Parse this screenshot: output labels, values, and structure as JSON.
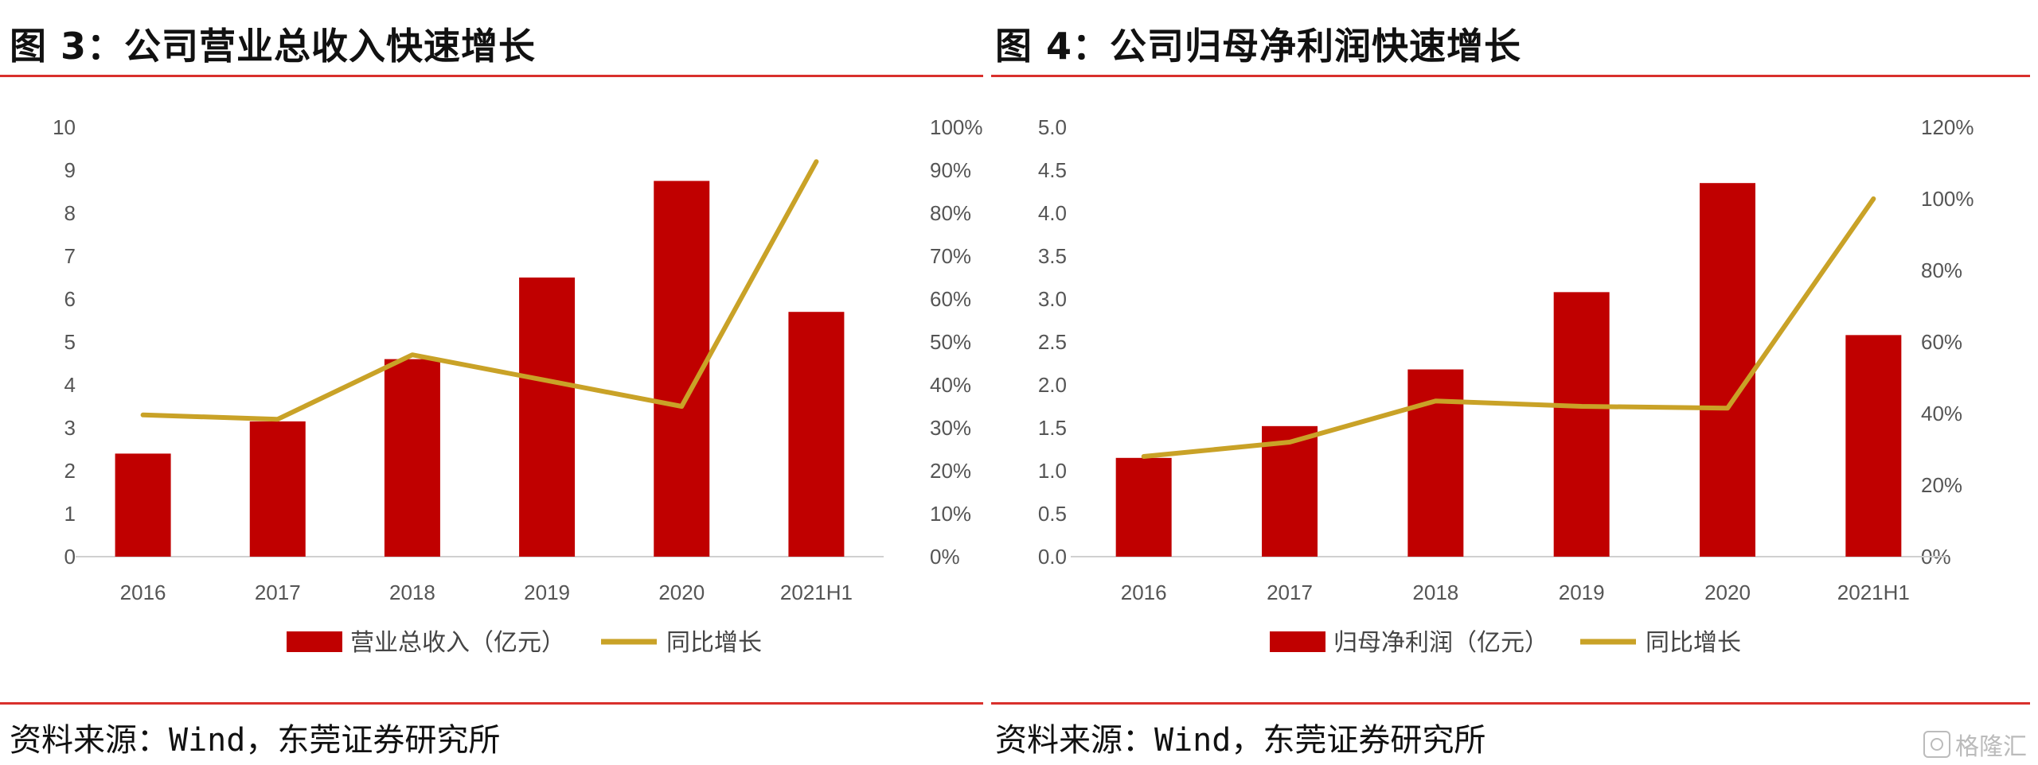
{
  "left": {
    "title": "图 3：公司营业总收入快速增长",
    "source": "资料来源：Wind，东莞证券研究所",
    "legend": {
      "bar": "营业总收入（亿元）",
      "line": "同比增长"
    },
    "y_ticks": [
      "0",
      "1",
      "2",
      "3",
      "4",
      "5",
      "6",
      "7",
      "8",
      "9",
      "10"
    ],
    "y2_ticks": [
      "0%",
      "10%",
      "20%",
      "30%",
      "40%",
      "50%",
      "60%",
      "70%",
      "80%",
      "90%",
      "100%"
    ]
  },
  "right": {
    "title": "图 4：公司归母净利润快速增长",
    "source": "资料来源：Wind，东莞证券研究所",
    "legend": {
      "bar": "归母净利润（亿元）",
      "line": "同比增长"
    },
    "y_ticks": [
      "0.0",
      "0.5",
      "1.0",
      "1.5",
      "2.0",
      "2.5",
      "3.0",
      "3.5",
      "4.0",
      "4.5",
      "5.0"
    ],
    "y2_ticks": [
      "0%",
      "20%",
      "40%",
      "60%",
      "80%",
      "100%",
      "120%"
    ]
  },
  "watermark": "格隆汇",
  "colors": {
    "bar": "#c00000",
    "line": "#c9a227",
    "rule": "#d9302c"
  },
  "chart_data": [
    {
      "type": "bar",
      "categories": [
        "2016",
        "2017",
        "2018",
        "2019",
        "2020",
        "2021H1"
      ],
      "series": [
        {
          "name": "营业总收入（亿元）",
          "type": "bar",
          "axis": "left",
          "values": [
            2.4,
            3.15,
            4.6,
            6.5,
            8.75,
            5.7
          ]
        },
        {
          "name": "同比增长",
          "type": "line",
          "axis": "right",
          "values": [
            33,
            32,
            47,
            41,
            35,
            92
          ]
        }
      ],
      "ylim": [
        0,
        10
      ],
      "y2lim": [
        0,
        100
      ],
      "y2_unit": "%"
    },
    {
      "type": "bar",
      "categories": [
        "2016",
        "2017",
        "2018",
        "2019",
        "2020",
        "2021H1"
      ],
      "series": [
        {
          "name": "归母净利润（亿元）",
          "type": "bar",
          "axis": "left",
          "values": [
            1.15,
            1.52,
            2.18,
            3.08,
            4.35,
            2.58
          ]
        },
        {
          "name": "同比增长",
          "type": "line",
          "axis": "right",
          "values": [
            28,
            32,
            43.5,
            42,
            41.5,
            100
          ]
        }
      ],
      "ylim": [
        0,
        5
      ],
      "y2lim": [
        0,
        120
      ],
      "y2_unit": "%"
    }
  ]
}
